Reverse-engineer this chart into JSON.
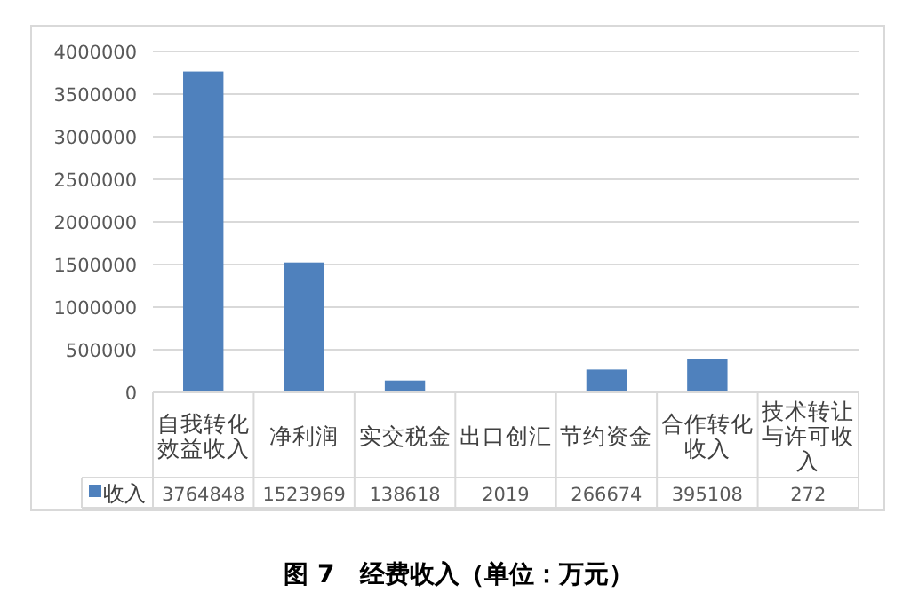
{
  "chart_data": {
    "type": "bar",
    "title": "图 7　经费收入（单位：万元）",
    "categories": [
      "自我转化效益收入",
      "净利润",
      "实交税金",
      "出口创汇",
      "节约资金",
      "合作转化收入",
      "技术转让与许可收入"
    ],
    "series": [
      {
        "name": "收入",
        "color": "#4f81bd",
        "values": [
          3764848,
          1523969,
          138618,
          2019,
          266674,
          395108,
          272
        ]
      }
    ],
    "ylim": [
      0,
      4000000
    ],
    "yticks": [
      0,
      500000,
      1000000,
      1500000,
      2000000,
      2500000,
      3000000,
      3500000,
      4000000
    ],
    "grid": "y",
    "data_labels": true
  }
}
